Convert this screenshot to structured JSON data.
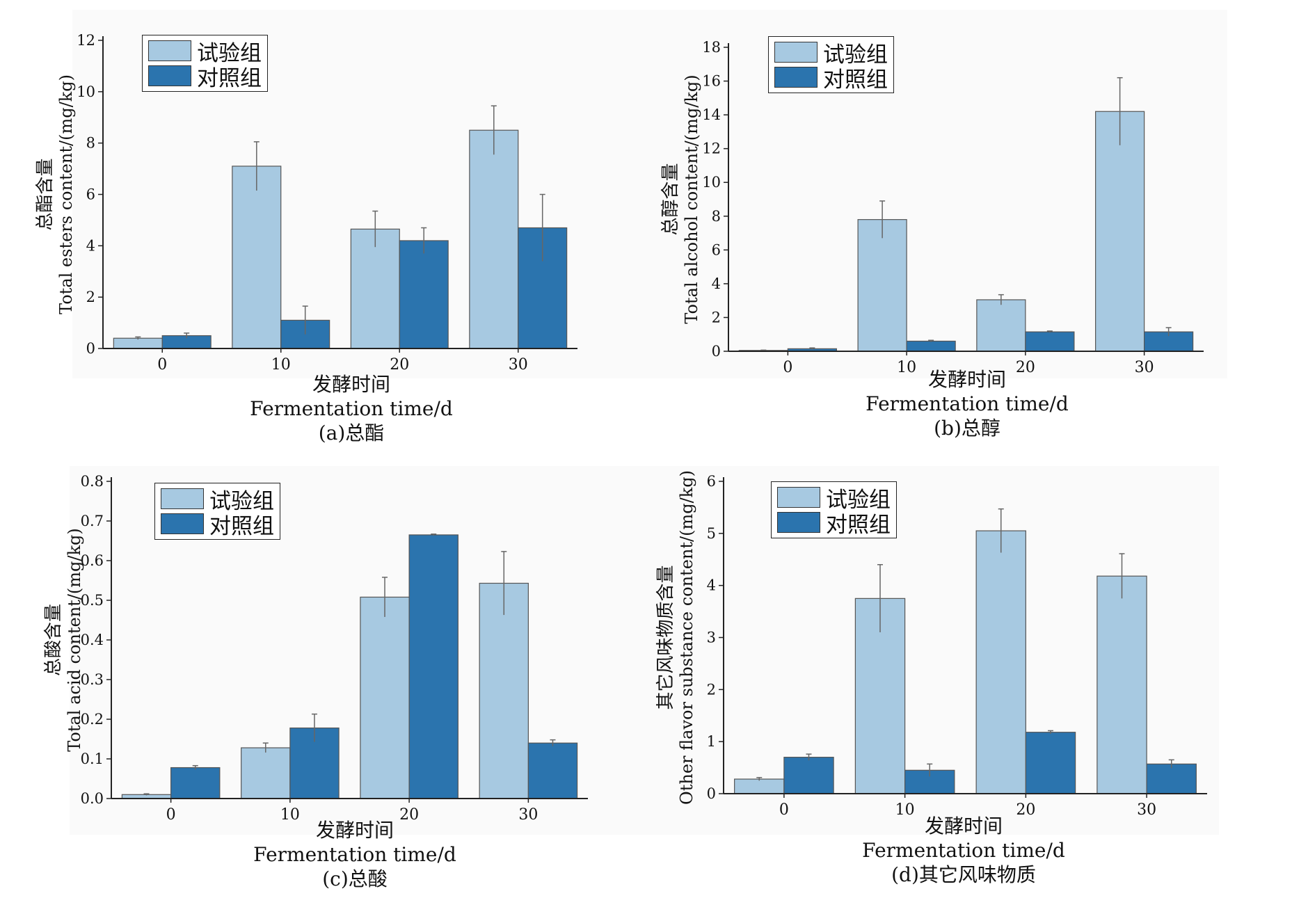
{
  "colors": {
    "test": "#a7c9e1",
    "control": "#2b74ae",
    "error": "#666666"
  },
  "legend": {
    "test_label": "试验组",
    "control_label": "对照组"
  },
  "chart_data": [
    {
      "type": "bar",
      "panel": "a",
      "categories": [
        "0",
        "10",
        "20",
        "30"
      ],
      "series": [
        {
          "name": "试验组",
          "values": [
            0.4,
            7.1,
            4.65,
            8.5
          ],
          "errors": [
            0.05,
            0.95,
            0.7,
            0.95
          ]
        },
        {
          "name": "对照组",
          "values": [
            0.5,
            1.1,
            4.2,
            4.7
          ],
          "errors": [
            0.1,
            0.55,
            0.5,
            1.3
          ]
        }
      ],
      "ylim": [
        0,
        12
      ],
      "yticks": [
        "0",
        "2",
        "4",
        "6",
        "8",
        "10",
        "12"
      ],
      "ylabel_cn": "总酯含量",
      "ylabel_en": "Total esters content/(mg/kg)",
      "xlabel_cn": "发酵时间",
      "xlabel_en": "Fermentation time/d",
      "caption": "(a)总酯"
    },
    {
      "type": "bar",
      "panel": "b",
      "categories": [
        "0",
        "10",
        "20",
        "30"
      ],
      "series": [
        {
          "name": "试验组",
          "values": [
            0.05,
            7.8,
            3.05,
            14.2
          ],
          "errors": [
            0.02,
            1.1,
            0.3,
            2.0
          ]
        },
        {
          "name": "对照组",
          "values": [
            0.15,
            0.6,
            1.15,
            1.15
          ],
          "errors": [
            0.05,
            0.05,
            0.05,
            0.25
          ]
        }
      ],
      "ylim": [
        0,
        18
      ],
      "yticks": [
        "0",
        "2",
        "4",
        "6",
        "8",
        "10",
        "12",
        "14",
        "16",
        "18"
      ],
      "ylabel_cn": "总醇含量",
      "ylabel_en": "Total alcohol content/(mg/kg)",
      "xlabel_cn": "发酵时间",
      "xlabel_en": "Fermentation time/d",
      "caption": "(b)总醇"
    },
    {
      "type": "bar",
      "panel": "c",
      "categories": [
        "0",
        "10",
        "20",
        "30"
      ],
      "series": [
        {
          "name": "试验组",
          "values": [
            0.01,
            0.128,
            0.508,
            0.543
          ],
          "errors": [
            0.002,
            0.012,
            0.05,
            0.08
          ]
        },
        {
          "name": "对照组",
          "values": [
            0.078,
            0.178,
            0.665,
            0.14
          ],
          "errors": [
            0.005,
            0.035,
            0.002,
            0.008
          ]
        }
      ],
      "ylim": [
        0,
        0.8
      ],
      "yticks": [
        "0.0",
        "0.1",
        "0.2",
        "0.3",
        "0.4",
        "0.5",
        "0.6",
        "0.7",
        "0.8"
      ],
      "ylabel_cn": "总酸含量",
      "ylabel_en": "Total acid content/(mg/kg)",
      "xlabel_cn": "发酵时间",
      "xlabel_en": "Fermentation time/d",
      "caption": "(c)总酸"
    },
    {
      "type": "bar",
      "panel": "d",
      "categories": [
        "0",
        "10",
        "20",
        "30"
      ],
      "series": [
        {
          "name": "试验组",
          "values": [
            0.28,
            3.75,
            5.05,
            4.18
          ],
          "errors": [
            0.03,
            0.65,
            0.42,
            0.43
          ]
        },
        {
          "name": "对照组",
          "values": [
            0.7,
            0.45,
            1.18,
            0.57
          ],
          "errors": [
            0.06,
            0.12,
            0.03,
            0.08
          ]
        }
      ],
      "ylim": [
        0,
        6
      ],
      "yticks": [
        "0",
        "1",
        "2",
        "3",
        "4",
        "5",
        "6"
      ],
      "ylabel_cn": "其它风味物质含量",
      "ylabel_en": "Other flavor substance content/(mg/kg)",
      "xlabel_cn": "发酵时间",
      "xlabel_en": "Fermentation time/d",
      "caption": "(d)其它风味物质"
    }
  ]
}
